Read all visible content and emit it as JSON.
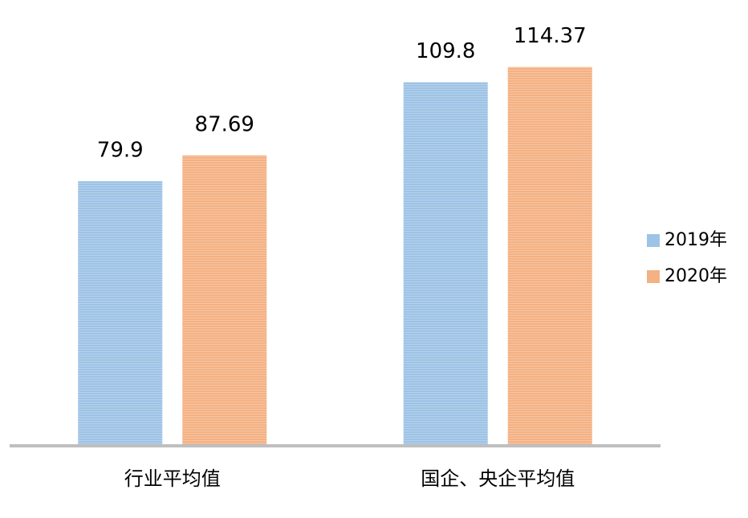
{
  "chart_data": {
    "type": "bar",
    "categories": [
      "行业平均值",
      "国企、央企平均值"
    ],
    "series": [
      {
        "name": "2019年",
        "color": "#9dc3e6",
        "values": [
          79.9,
          109.8
        ]
      },
      {
        "name": "2020年",
        "color": "#f4b183",
        "values": [
          87.69,
          114.37
        ]
      }
    ],
    "ylim": [
      0,
      115
    ],
    "legend": "right"
  }
}
